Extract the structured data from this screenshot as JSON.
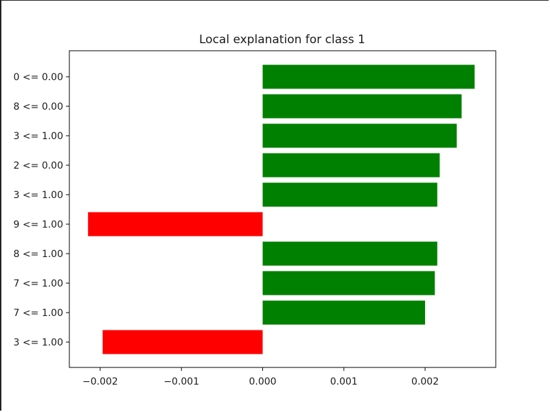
{
  "chart_data": {
    "type": "bar",
    "orientation": "horizontal",
    "title": "Local explanation for class 1",
    "xlabel": "",
    "ylabel": "",
    "categories": [
      "0 <= 0.00",
      "8 <= 0.00",
      "3 <= 1.00",
      "2 <= 0.00",
      "3 <= 1.00",
      "9 <= 1.00",
      "8 <= 1.00",
      "7 <= 1.00",
      "7 <= 1.00",
      "3 <= 1.00"
    ],
    "values": [
      0.00261,
      0.00245,
      0.00239,
      0.00218,
      0.00215,
      -0.00215,
      0.00215,
      0.00212,
      0.002,
      -0.00197
    ],
    "xlim": [
      -0.00238,
      0.00287
    ],
    "xticks": [
      -0.002,
      -0.001,
      0.0,
      0.001,
      0.002
    ],
    "xtick_labels": [
      "−0.002",
      "−0.001",
      "0.000",
      "0.001",
      "0.002"
    ],
    "grid": false,
    "colors": {
      "positive": "#008000",
      "negative": "#ff0000"
    }
  }
}
